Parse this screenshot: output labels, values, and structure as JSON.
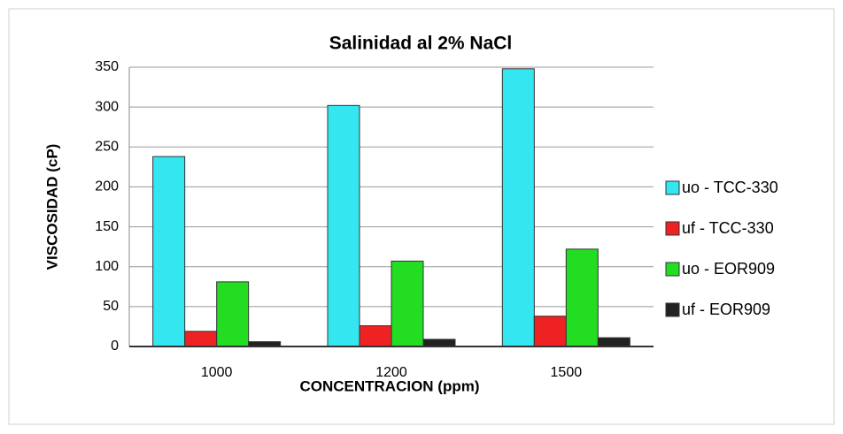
{
  "chart_data": {
    "type": "bar",
    "title": "Salinidad al 2% NaCl",
    "x_label": "CONCENTRACION (ppm)",
    "y_label": "VISCOSIDAD (cP)",
    "categories": [
      "1000",
      "1200",
      "1500"
    ],
    "series": [
      {
        "name": "uo - TCC-330",
        "color": "#33e6f0",
        "values": [
          238,
          302,
          348
        ]
      },
      {
        "name": "uf - TCC-330",
        "color": "#ee2222",
        "values": [
          19,
          26,
          38
        ]
      },
      {
        "name": "uo - EOR909",
        "color": "#22dd22",
        "values": [
          81,
          107,
          122
        ]
      },
      {
        "name": "uf - EOR909",
        "color": "#222222",
        "values": [
          6,
          9,
          11
        ]
      }
    ],
    "ylim": [
      0,
      350
    ],
    "yticks": [
      0,
      50,
      100,
      150,
      200,
      250,
      300,
      350
    ],
    "grid": true,
    "legend": "right"
  }
}
